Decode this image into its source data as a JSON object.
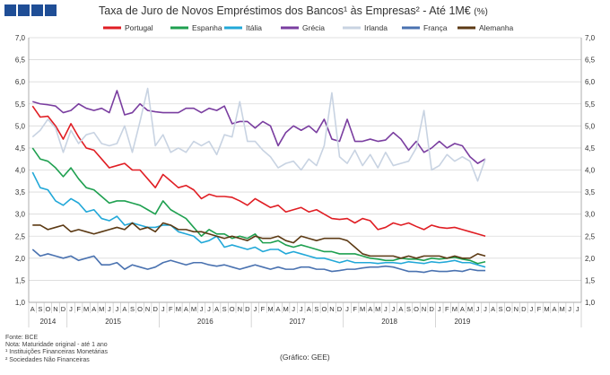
{
  "header": {
    "title": "Taxa de Juro de Novos Empréstimos dos Bancos¹ às Empresas² - Até 1M€",
    "unit": "(%)"
  },
  "notes": {
    "source": "Fonte: BCE",
    "maturity": "Nota: Maturidade original - até 1 ano",
    "footnote1": "¹ Instituições Financeiras Monetárias",
    "footnote2": "² Sociedades Não Financeiras"
  },
  "credit": "(Gráfico: GEE)",
  "chart_data": {
    "type": "line",
    "title": "Taxa de Juro de Novos Empréstimos dos Bancos¹ às Empresas² - Até 1M€ (%)",
    "ylim": [
      1.0,
      7.0
    ],
    "yticks": [
      "1,0",
      "1,5",
      "2,0",
      "2,5",
      "3,0",
      "3,5",
      "4,0",
      "4,5",
      "5,0",
      "5,5",
      "6,0",
      "6,5",
      "7,0"
    ],
    "grid": true,
    "legend_position": "top",
    "month_labels": [
      "A",
      "S",
      "O",
      "N",
      "D",
      "J",
      "F",
      "M",
      "A",
      "M",
      "J",
      "J",
      "A",
      "S",
      "O",
      "N",
      "D",
      "J",
      "F",
      "M",
      "A",
      "M",
      "J",
      "J",
      "A",
      "S",
      "O",
      "N",
      "D",
      "J",
      "F",
      "M",
      "A",
      "M",
      "J",
      "J",
      "A",
      "S",
      "O",
      "N",
      "D",
      "J",
      "F",
      "M",
      "A",
      "M",
      "J",
      "J",
      "A",
      "S",
      "O",
      "N",
      "D",
      "J",
      "F",
      "M",
      "A",
      "M",
      "J",
      "J",
      "A",
      "S",
      "O",
      "N",
      "D",
      "J",
      "F",
      "M",
      "A",
      "M",
      "J",
      "J"
    ],
    "year_labels": [
      {
        "label": "2014",
        "start": 0,
        "end": 4
      },
      {
        "label": "2015",
        "start": 5,
        "end": 16
      },
      {
        "label": "2016",
        "start": 17,
        "end": 28
      },
      {
        "label": "2017",
        "start": 29,
        "end": 40
      },
      {
        "label": "2018",
        "start": 41,
        "end": 52
      },
      {
        "label": "2019",
        "start": 53,
        "end": 59
      }
    ],
    "series": [
      {
        "name": "Portugal",
        "color": "#e01e24",
        "values": [
          5.45,
          5.2,
          5.22,
          5.0,
          4.7,
          5.05,
          4.75,
          4.5,
          4.45,
          4.25,
          4.05,
          4.1,
          4.15,
          4.0,
          4.0,
          3.8,
          3.6,
          3.9,
          3.75,
          3.6,
          3.65,
          3.55,
          3.35,
          3.45,
          3.4,
          3.4,
          3.38,
          3.3,
          3.2,
          3.35,
          3.25,
          3.15,
          3.2,
          3.05,
          3.1,
          3.15,
          3.05,
          3.1,
          3.0,
          2.9,
          2.88,
          2.9,
          2.8,
          2.9,
          2.85,
          2.65,
          2.7,
          2.8,
          2.75,
          2.8,
          2.72,
          2.65,
          2.75,
          2.7,
          2.68,
          2.7,
          2.65,
          2.6,
          2.55,
          2.5
        ]
      },
      {
        "name": "Espanha",
        "color": "#1fa050",
        "values": [
          4.5,
          4.25,
          4.2,
          4.05,
          3.85,
          4.05,
          3.8,
          3.6,
          3.55,
          3.4,
          3.25,
          3.3,
          3.3,
          3.25,
          3.2,
          3.1,
          3.0,
          3.3,
          3.1,
          3.0,
          2.9,
          2.7,
          2.5,
          2.65,
          2.55,
          2.55,
          2.45,
          2.5,
          2.45,
          2.55,
          2.35,
          2.35,
          2.4,
          2.3,
          2.25,
          2.3,
          2.25,
          2.2,
          2.15,
          2.15,
          2.1,
          2.1,
          2.1,
          2.05,
          2.0,
          1.98,
          1.95,
          1.95,
          2.0,
          1.98,
          1.98,
          1.95,
          2.0,
          1.98,
          2.0,
          2.02,
          1.98,
          1.95,
          1.88,
          1.92
        ]
      },
      {
        "name": "Itália",
        "color": "#22a8d8",
        "values": [
          3.95,
          3.6,
          3.55,
          3.3,
          3.2,
          3.35,
          3.25,
          3.05,
          3.1,
          2.9,
          2.85,
          2.95,
          2.75,
          2.8,
          2.75,
          2.7,
          2.7,
          2.75,
          2.75,
          2.6,
          2.55,
          2.5,
          2.35,
          2.4,
          2.5,
          2.25,
          2.3,
          2.25,
          2.2,
          2.25,
          2.15,
          2.2,
          2.2,
          2.1,
          2.15,
          2.1,
          2.05,
          2.0,
          2.0,
          1.95,
          1.9,
          1.95,
          1.9,
          1.9,
          1.9,
          1.88,
          1.9,
          1.9,
          1.88,
          1.92,
          1.9,
          1.88,
          1.92,
          1.9,
          1.92,
          1.95,
          1.9,
          1.9,
          1.85,
          1.8
        ]
      },
      {
        "name": "Grécia",
        "color": "#7a3ea0",
        "values": [
          5.55,
          5.5,
          5.48,
          5.45,
          5.3,
          5.35,
          5.5,
          5.4,
          5.35,
          5.4,
          5.3,
          5.8,
          5.25,
          5.3,
          5.5,
          5.35,
          5.32,
          5.3,
          5.3,
          5.3,
          5.4,
          5.4,
          5.3,
          5.4,
          5.35,
          5.45,
          5.05,
          5.1,
          5.1,
          4.95,
          5.1,
          5.0,
          4.55,
          4.85,
          5.0,
          4.9,
          5.0,
          4.85,
          5.15,
          4.7,
          4.65,
          5.15,
          4.65,
          4.65,
          4.7,
          4.65,
          4.68,
          4.85,
          4.7,
          4.45,
          4.65,
          4.4,
          4.5,
          4.65,
          4.5,
          4.6,
          4.55,
          4.3,
          4.15,
          4.25
        ]
      },
      {
        "name": "Irlanda",
        "color": "#c8d3e2",
        "values": [
          4.75,
          4.9,
          5.15,
          4.95,
          4.4,
          4.9,
          4.6,
          4.8,
          4.85,
          4.6,
          4.55,
          4.6,
          5.0,
          4.4,
          5.1,
          5.85,
          4.55,
          4.8,
          4.4,
          4.5,
          4.4,
          4.65,
          4.55,
          4.65,
          4.35,
          4.8,
          4.75,
          5.55,
          4.65,
          4.65,
          4.45,
          4.3,
          4.05,
          4.15,
          4.2,
          4.0,
          4.25,
          4.1,
          4.55,
          5.75,
          4.3,
          4.15,
          4.45,
          4.1,
          4.35,
          4.05,
          4.4,
          4.1,
          4.15,
          4.2,
          4.5,
          5.35,
          4.0,
          4.1,
          4.35,
          4.2,
          4.3,
          4.2,
          3.75,
          4.25
        ]
      },
      {
        "name": "França",
        "color": "#4a72b0",
        "values": [
          2.2,
          2.05,
          2.1,
          2.05,
          2.0,
          2.05,
          1.95,
          2.0,
          2.05,
          1.85,
          1.85,
          1.9,
          1.75,
          1.85,
          1.8,
          1.75,
          1.8,
          1.9,
          1.95,
          1.9,
          1.85,
          1.9,
          1.9,
          1.85,
          1.82,
          1.85,
          1.8,
          1.75,
          1.8,
          1.85,
          1.8,
          1.75,
          1.8,
          1.75,
          1.75,
          1.8,
          1.8,
          1.75,
          1.75,
          1.7,
          1.72,
          1.75,
          1.75,
          1.78,
          1.8,
          1.8,
          1.82,
          1.8,
          1.75,
          1.7,
          1.7,
          1.68,
          1.72,
          1.7,
          1.7,
          1.72,
          1.7,
          1.75,
          1.72,
          1.72
        ]
      },
      {
        "name": "Alemanha",
        "color": "#5c3a14",
        "values": [
          2.75,
          2.75,
          2.65,
          2.7,
          2.75,
          2.6,
          2.65,
          2.6,
          2.55,
          2.6,
          2.65,
          2.7,
          2.65,
          2.8,
          2.65,
          2.7,
          2.6,
          2.8,
          2.75,
          2.65,
          2.65,
          2.6,
          2.6,
          2.55,
          2.5,
          2.45,
          2.5,
          2.45,
          2.4,
          2.5,
          2.45,
          2.45,
          2.5,
          2.4,
          2.35,
          2.5,
          2.45,
          2.4,
          2.45,
          2.45,
          2.45,
          2.4,
          2.25,
          2.1,
          2.05,
          2.05,
          2.05,
          2.05,
          2.0,
          2.05,
          2.0,
          2.05,
          2.05,
          2.05,
          2.0,
          2.05,
          2.0,
          2.0,
          2.1,
          2.05
        ]
      }
    ]
  }
}
